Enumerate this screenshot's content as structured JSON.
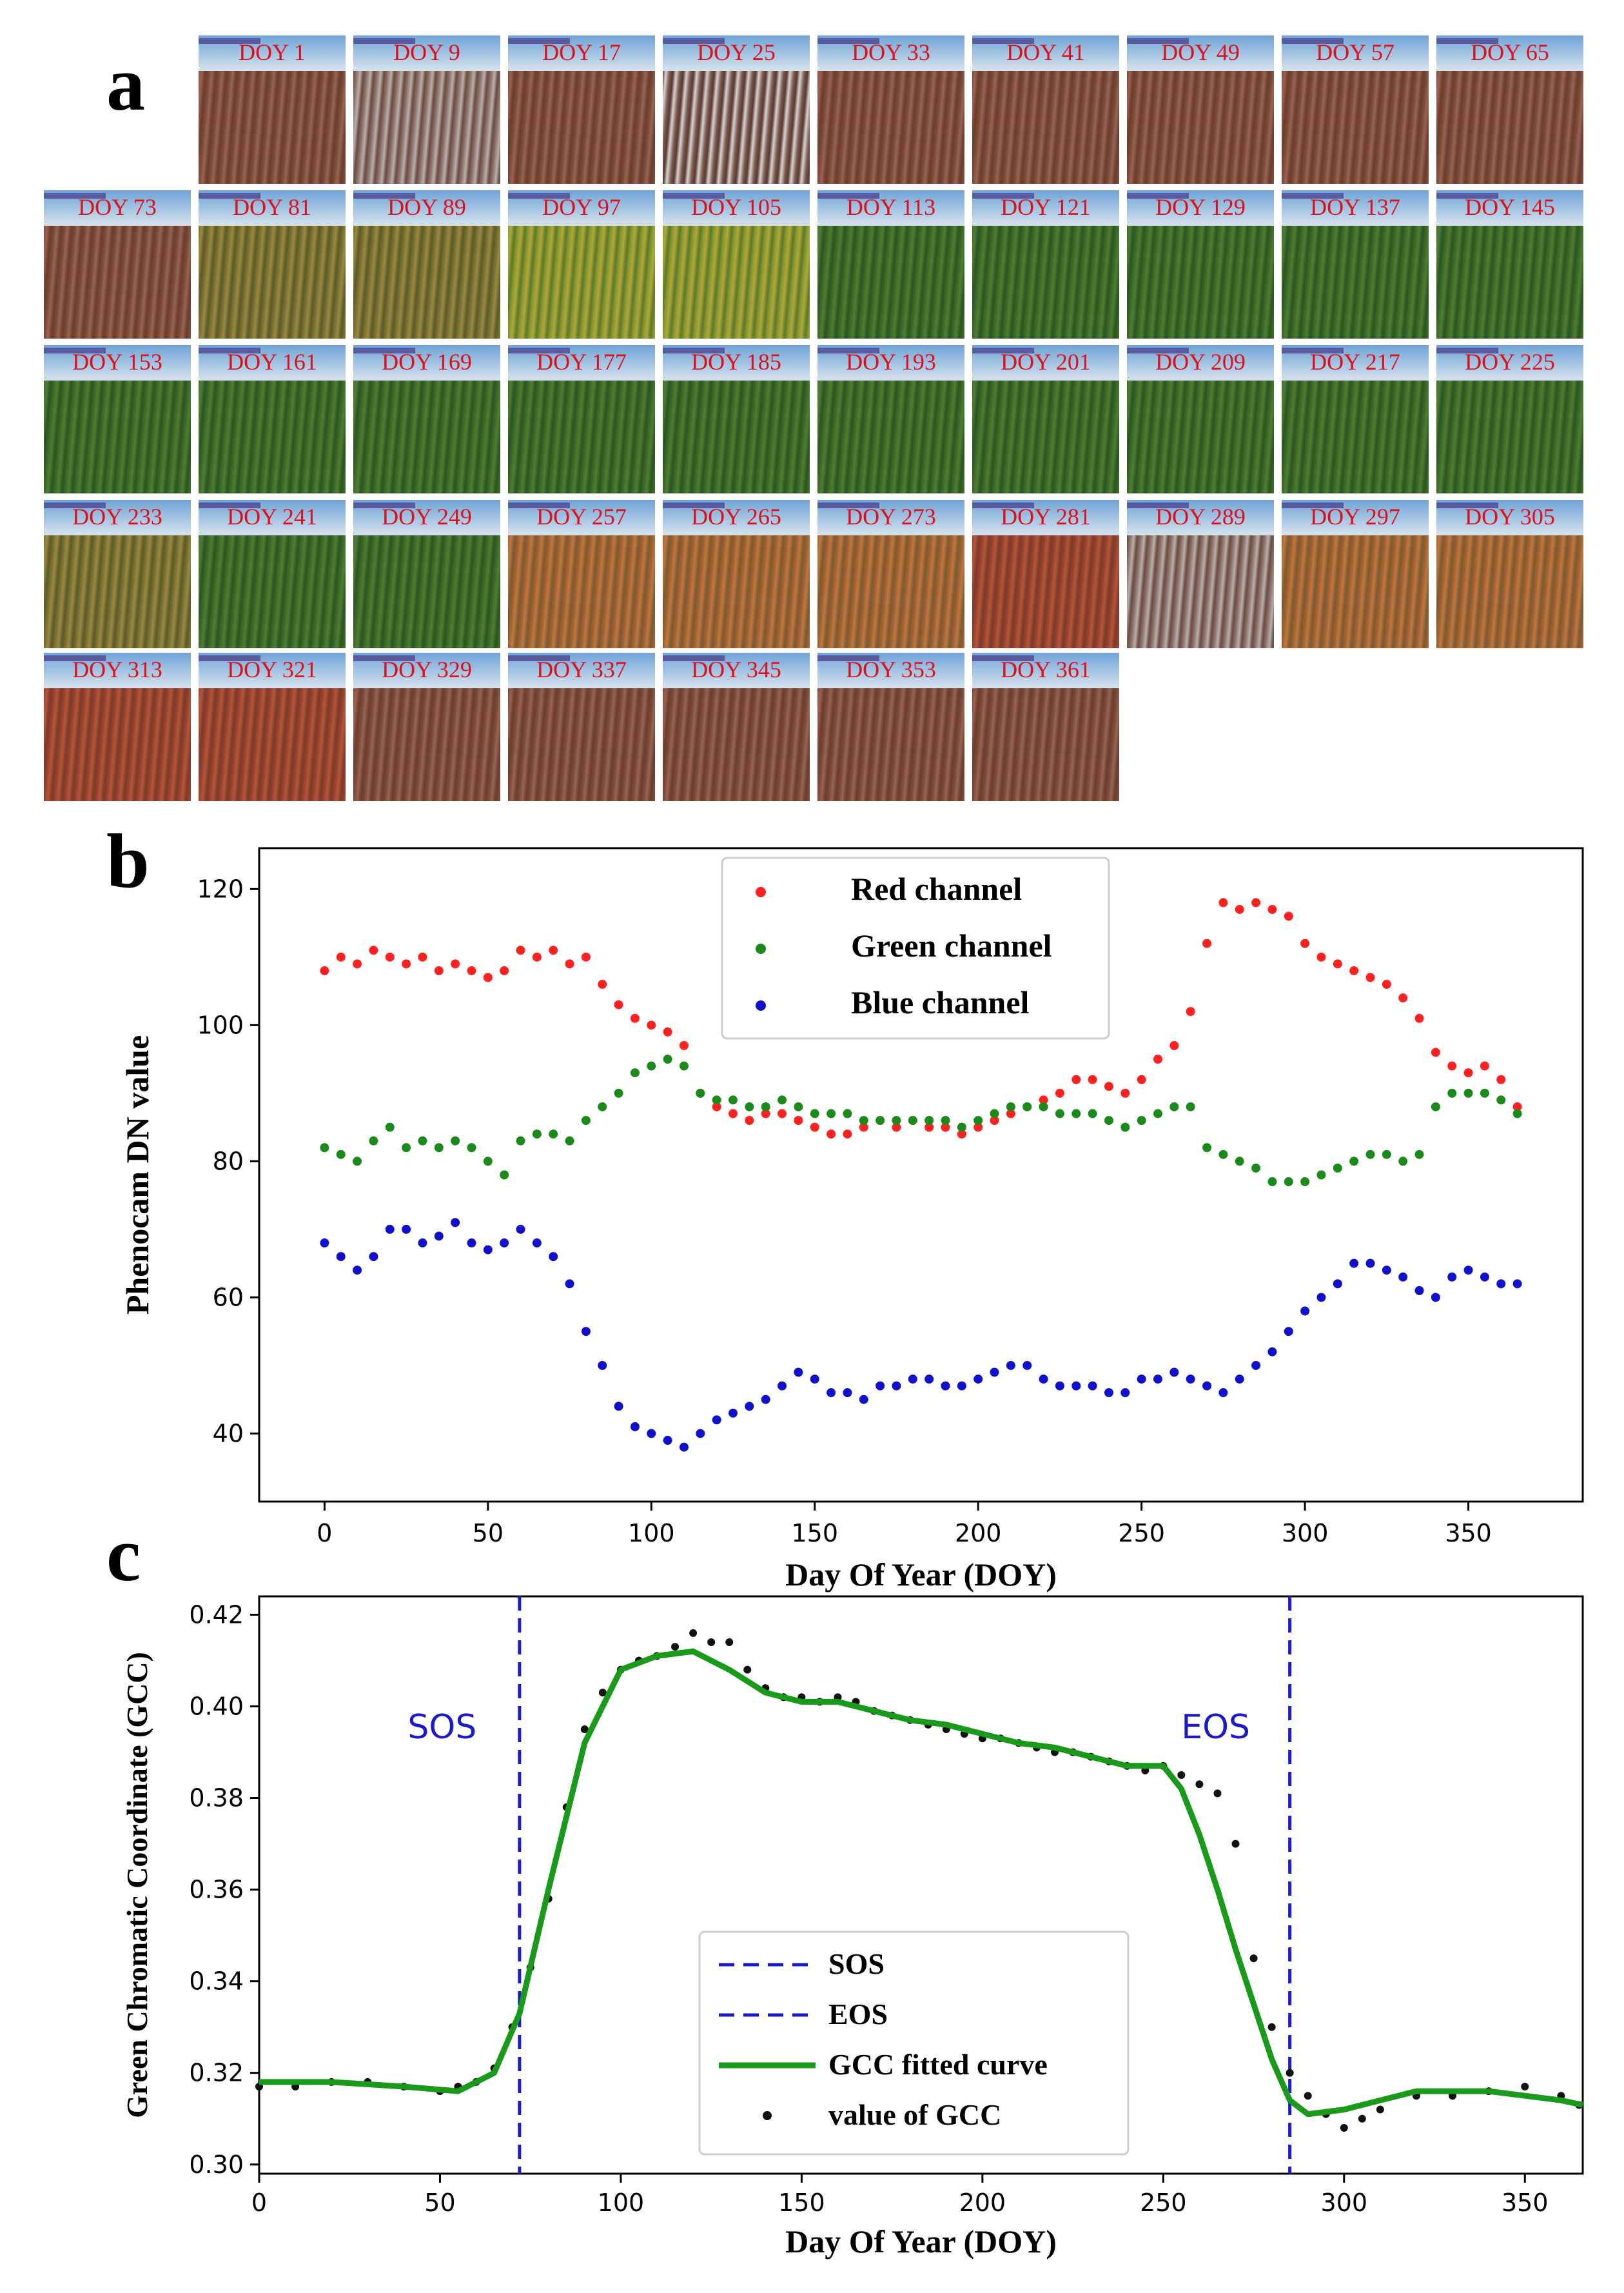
{
  "panel_labels": {
    "a": "a",
    "b": "b",
    "c": "c"
  },
  "thumbnails": [
    {
      "label": "DOY 1",
      "palette": "brown"
    },
    {
      "label": "DOY 9",
      "palette": "fog"
    },
    {
      "label": "DOY 17",
      "palette": "brown"
    },
    {
      "label": "DOY 25",
      "palette": "snow"
    },
    {
      "label": "DOY 33",
      "palette": "brown"
    },
    {
      "label": "DOY 41",
      "palette": "brown"
    },
    {
      "label": "DOY 49",
      "palette": "brown"
    },
    {
      "label": "DOY 57",
      "palette": "brown"
    },
    {
      "label": "DOY 65",
      "palette": "brown"
    },
    {
      "label": "DOY 73",
      "palette": "brown"
    },
    {
      "label": "DOY 81",
      "palette": "olive"
    },
    {
      "label": "DOY 89",
      "palette": "olive"
    },
    {
      "label": "DOY 97",
      "palette": "yellowgreen"
    },
    {
      "label": "DOY 105",
      "palette": "yellowgreen"
    },
    {
      "label": "DOY 113",
      "palette": "green"
    },
    {
      "label": "DOY 121",
      "palette": "green"
    },
    {
      "label": "DOY 129",
      "palette": "green"
    },
    {
      "label": "DOY 137",
      "palette": "green"
    },
    {
      "label": "DOY 145",
      "palette": "green"
    },
    {
      "label": "DOY 153",
      "palette": "green"
    },
    {
      "label": "DOY 161",
      "palette": "green"
    },
    {
      "label": "DOY 169",
      "palette": "green"
    },
    {
      "label": "DOY 177",
      "palette": "green"
    },
    {
      "label": "DOY 185",
      "palette": "green"
    },
    {
      "label": "DOY 193",
      "palette": "green"
    },
    {
      "label": "DOY 201",
      "palette": "green"
    },
    {
      "label": "DOY 209",
      "palette": "green"
    },
    {
      "label": "DOY 217",
      "palette": "green"
    },
    {
      "label": "DOY 225",
      "palette": "green"
    },
    {
      "label": "DOY 233",
      "palette": "olive"
    },
    {
      "label": "DOY 241",
      "palette": "green"
    },
    {
      "label": "DOY 249",
      "palette": "green"
    },
    {
      "label": "DOY 257",
      "palette": "autumn"
    },
    {
      "label": "DOY 265",
      "palette": "autumn"
    },
    {
      "label": "DOY 273",
      "palette": "autumn"
    },
    {
      "label": "DOY 281",
      "palette": "red"
    },
    {
      "label": "DOY 289",
      "palette": "fog"
    },
    {
      "label": "DOY 297",
      "palette": "autumn"
    },
    {
      "label": "DOY 305",
      "palette": "autumn"
    },
    {
      "label": "DOY 313",
      "palette": "red"
    },
    {
      "label": "DOY 321",
      "palette": "red"
    },
    {
      "label": "DOY 329",
      "palette": "brown"
    },
    {
      "label": "DOY 337",
      "palette": "brown"
    },
    {
      "label": "DOY 345",
      "palette": "brown"
    },
    {
      "label": "DOY 353",
      "palette": "brown"
    },
    {
      "label": "DOY 361",
      "palette": "brown"
    }
  ],
  "chart_data": [
    {
      "type": "scatter",
      "panel": "b",
      "xlabel": "Day Of Year (DOY)",
      "ylabel": "Phenocam DN value",
      "xlim": [
        -20,
        385
      ],
      "ylim": [
        30,
        126
      ],
      "xticks": [
        0,
        50,
        100,
        150,
        200,
        250,
        300,
        350
      ],
      "yticks": [
        40,
        60,
        80,
        100,
        120
      ],
      "legend_position": "top-center",
      "series": [
        {
          "name": "Red channel",
          "color": "#ff2020",
          "x": [
            0,
            5,
            10,
            15,
            20,
            25,
            30,
            35,
            40,
            45,
            50,
            55,
            60,
            65,
            70,
            75,
            80,
            85,
            90,
            95,
            100,
            105,
            110,
            115,
            120,
            125,
            130,
            135,
            140,
            145,
            150,
            155,
            160,
            165,
            170,
            175,
            180,
            185,
            190,
            195,
            200,
            205,
            210,
            215,
            220,
            225,
            230,
            235,
            240,
            245,
            250,
            255,
            260,
            265,
            270,
            275,
            280,
            285,
            290,
            295,
            300,
            305,
            310,
            315,
            320,
            325,
            330,
            335,
            340,
            345,
            350,
            355,
            360,
            365
          ],
          "y": [
            108,
            110,
            109,
            111,
            110,
            109,
            110,
            108,
            109,
            108,
            107,
            108,
            111,
            110,
            111,
            109,
            110,
            106,
            103,
            101,
            100,
            99,
            97,
            90,
            88,
            87,
            86,
            87,
            87,
            86,
            85,
            84,
            84,
            85,
            86,
            85,
            86,
            85,
            85,
            84,
            85,
            86,
            87,
            88,
            89,
            90,
            92,
            92,
            91,
            90,
            92,
            95,
            97,
            102,
            112,
            118,
            117,
            118,
            117,
            116,
            112,
            110,
            109,
            108,
            107,
            106,
            104,
            101,
            96,
            94,
            93,
            94,
            92,
            88
          ]
        },
        {
          "name": "Green channel",
          "color": "#1a8a1a",
          "x": [
            0,
            5,
            10,
            15,
            20,
            25,
            30,
            35,
            40,
            45,
            50,
            55,
            60,
            65,
            70,
            75,
            80,
            85,
            90,
            95,
            100,
            105,
            110,
            115,
            120,
            125,
            130,
            135,
            140,
            145,
            150,
            155,
            160,
            165,
            170,
            175,
            180,
            185,
            190,
            195,
            200,
            205,
            210,
            215,
            220,
            225,
            230,
            235,
            240,
            245,
            250,
            255,
            260,
            265,
            270,
            275,
            280,
            285,
            290,
            295,
            300,
            305,
            310,
            315,
            320,
            325,
            330,
            335,
            340,
            345,
            350,
            355,
            360,
            365
          ],
          "y": [
            82,
            81,
            80,
            83,
            85,
            82,
            83,
            82,
            83,
            82,
            80,
            78,
            83,
            84,
            84,
            83,
            86,
            88,
            90,
            93,
            94,
            95,
            94,
            90,
            89,
            89,
            88,
            88,
            89,
            88,
            87,
            87,
            87,
            86,
            86,
            86,
            86,
            86,
            86,
            85,
            86,
            87,
            88,
            88,
            88,
            87,
            87,
            87,
            86,
            85,
            86,
            87,
            88,
            88,
            82,
            81,
            80,
            79,
            77,
            77,
            77,
            78,
            79,
            80,
            81,
            81,
            80,
            81,
            88,
            90,
            90,
            90,
            89,
            87
          ]
        },
        {
          "name": "Blue channel",
          "color": "#1010cc",
          "x": [
            0,
            5,
            10,
            15,
            20,
            25,
            30,
            35,
            40,
            45,
            50,
            55,
            60,
            65,
            70,
            75,
            80,
            85,
            90,
            95,
            100,
            105,
            110,
            115,
            120,
            125,
            130,
            135,
            140,
            145,
            150,
            155,
            160,
            165,
            170,
            175,
            180,
            185,
            190,
            195,
            200,
            205,
            210,
            215,
            220,
            225,
            230,
            235,
            240,
            245,
            250,
            255,
            260,
            265,
            270,
            275,
            280,
            285,
            290,
            295,
            300,
            305,
            310,
            315,
            320,
            325,
            330,
            335,
            340,
            345,
            350,
            355,
            360,
            365
          ],
          "y": [
            68,
            66,
            64,
            66,
            70,
            70,
            68,
            69,
            71,
            68,
            67,
            68,
            70,
            68,
            66,
            62,
            55,
            50,
            44,
            41,
            40,
            39,
            38,
            40,
            42,
            43,
            44,
            45,
            47,
            49,
            48,
            46,
            46,
            45,
            47,
            47,
            48,
            48,
            47,
            47,
            48,
            49,
            50,
            50,
            48,
            47,
            47,
            47,
            46,
            46,
            48,
            48,
            49,
            48,
            47,
            46,
            48,
            50,
            52,
            55,
            58,
            60,
            62,
            65,
            65,
            64,
            63,
            61,
            60,
            63,
            64,
            63,
            62,
            62
          ]
        }
      ]
    },
    {
      "type": "line",
      "panel": "c",
      "xlabel": "Day Of Year (DOY)",
      "ylabel": "Green Chromatic Coordinate (GCC)",
      "xlim": [
        0,
        366
      ],
      "ylim": [
        0.298,
        0.424
      ],
      "xticks": [
        0,
        50,
        100,
        150,
        200,
        250,
        300,
        350
      ],
      "yticks": [
        0.3,
        0.32,
        0.34,
        0.36,
        0.38,
        0.4,
        0.42
      ],
      "ytick_labels": [
        "0.30",
        "0.32",
        "0.34",
        "0.36",
        "0.38",
        "0.40",
        "0.42"
      ],
      "legend_position": "bottom-center",
      "sos": 72,
      "eos": 285,
      "sos_label": "SOS",
      "eos_label": "EOS",
      "legend": {
        "sos": "SOS",
        "eos": "EOS",
        "fit": "GCC fitted curve",
        "obs": "value of GCC"
      },
      "series": [
        {
          "name": "GCC fitted curve",
          "color": "#1a9a1a",
          "x": [
            0,
            20,
            40,
            55,
            65,
            72,
            80,
            90,
            100,
            110,
            120,
            130,
            140,
            150,
            160,
            170,
            180,
            190,
            200,
            210,
            220,
            230,
            240,
            250,
            255,
            260,
            265,
            270,
            275,
            280,
            285,
            290,
            300,
            310,
            320,
            330,
            340,
            350,
            360,
            366
          ],
          "y": [
            0.318,
            0.318,
            0.317,
            0.316,
            0.32,
            0.333,
            0.36,
            0.392,
            0.408,
            0.411,
            0.412,
            0.408,
            0.403,
            0.401,
            0.401,
            0.399,
            0.397,
            0.396,
            0.394,
            0.392,
            0.391,
            0.389,
            0.387,
            0.387,
            0.382,
            0.372,
            0.36,
            0.347,
            0.335,
            0.323,
            0.314,
            0.311,
            0.312,
            0.314,
            0.316,
            0.316,
            0.316,
            0.315,
            0.314,
            0.313
          ]
        },
        {
          "name": "value of GCC",
          "color": "#111111",
          "x": [
            0,
            10,
            20,
            30,
            40,
            50,
            55,
            60,
            65,
            70,
            75,
            80,
            85,
            90,
            95,
            100,
            105,
            110,
            115,
            120,
            125,
            130,
            135,
            140,
            145,
            150,
            155,
            160,
            165,
            170,
            175,
            180,
            185,
            190,
            195,
            200,
            205,
            210,
            215,
            220,
            225,
            230,
            235,
            240,
            245,
            250,
            255,
            260,
            265,
            270,
            275,
            280,
            285,
            290,
            295,
            300,
            305,
            310,
            320,
            330,
            340,
            350,
            360,
            365
          ],
          "y": [
            0.317,
            0.317,
            0.318,
            0.318,
            0.317,
            0.316,
            0.317,
            0.318,
            0.321,
            0.33,
            0.343,
            0.358,
            0.378,
            0.395,
            0.403,
            0.408,
            0.41,
            0.411,
            0.413,
            0.416,
            0.414,
            0.414,
            0.408,
            0.404,
            0.402,
            0.402,
            0.401,
            0.402,
            0.401,
            0.399,
            0.398,
            0.397,
            0.396,
            0.395,
            0.394,
            0.393,
            0.393,
            0.392,
            0.391,
            0.39,
            0.39,
            0.389,
            0.388,
            0.387,
            0.386,
            0.387,
            0.385,
            0.383,
            0.381,
            0.37,
            0.345,
            0.33,
            0.32,
            0.315,
            0.311,
            0.308,
            0.31,
            0.312,
            0.315,
            0.315,
            0.316,
            0.317,
            0.315,
            0.313
          ]
        }
      ]
    }
  ]
}
